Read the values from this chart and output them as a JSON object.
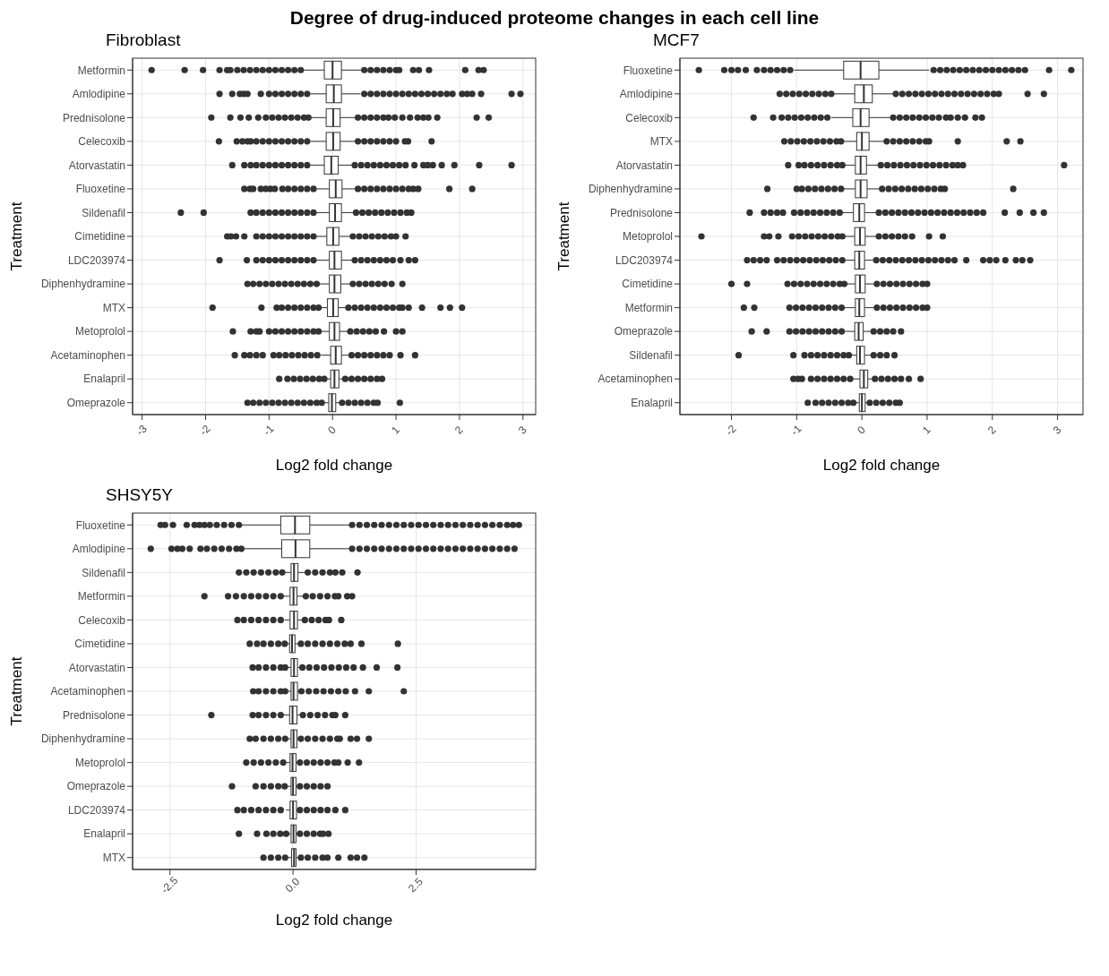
{
  "chart_data": [
    {
      "type": "box",
      "title": "Degree of drug-induced proteome changes in each cell line",
      "subtitle": "Fibroblast",
      "xlabel": "Log2 fold change",
      "ylabel": "Treatment",
      "orientation": "horizontal",
      "grid": true,
      "color": "#333333",
      "xlim": [
        -3.15,
        3.2
      ],
      "xticks": [
        -3,
        -2,
        -1,
        0,
        1,
        2,
        3
      ],
      "categories": [
        "Metformin",
        "Amlodipine",
        "Prednisolone",
        "Celecoxib",
        "Atorvastatin",
        "Fluoxetine",
        "Sildenafil",
        "Cimetidine",
        "LDC203974",
        "Diphenhydramine",
        "MTX",
        "Metoprolol",
        "Acetaminophen",
        "Enalapril",
        "Omeprazole"
      ],
      "boxes": [
        {
          "low": -0.45,
          "q1": -0.13,
          "median": 0.0,
          "q3": 0.14,
          "high": 0.47,
          "outliers": [
            -2.85,
            -2.33,
            -2.04,
            -1.78,
            -1.66,
            -1.61,
            -1.5,
            -1.4,
            -1.3,
            -1.2,
            -1.1,
            -1.0,
            -0.9,
            -0.8,
            -0.7,
            -0.6,
            -0.5,
            0.5,
            0.6,
            0.7,
            0.8,
            0.9,
            1.0,
            1.05,
            1.27,
            1.36,
            1.52,
            2.09,
            2.3,
            2.38
          ]
        },
        {
          "low": -0.35,
          "q1": -0.1,
          "median": 0.02,
          "q3": 0.14,
          "high": 0.44,
          "outliers": [
            -1.78,
            -1.58,
            -1.46,
            -1.4,
            -1.34,
            -1.13,
            -1.0,
            -0.9,
            -0.8,
            -0.7,
            -0.6,
            -0.5,
            -0.4,
            0.5,
            0.6,
            0.7,
            0.8,
            0.9,
            1.0,
            1.1,
            1.2,
            1.3,
            1.4,
            1.5,
            1.6,
            1.7,
            1.8,
            1.89,
            2.04,
            2.12,
            2.2,
            2.34,
            2.82,
            2.96
          ]
        },
        {
          "low": -0.35,
          "q1": -0.1,
          "median": 0.01,
          "q3": 0.12,
          "high": 0.37,
          "outliers": [
            -1.91,
            -1.61,
            -1.45,
            -1.32,
            -1.17,
            -1.05,
            -0.95,
            -0.85,
            -0.75,
            -0.65,
            -0.55,
            -0.45,
            -0.38,
            0.4,
            0.5,
            0.6,
            0.7,
            0.8,
            0.88,
            0.98,
            1.1,
            1.22,
            1.34,
            1.43,
            1.51,
            1.65,
            2.27,
            2.46
          ]
        },
        {
          "low": -0.35,
          "q1": -0.1,
          "median": 0.01,
          "q3": 0.12,
          "high": 0.37,
          "outliers": [
            -1.79,
            -1.51,
            -1.42,
            -1.34,
            -1.29,
            -1.2,
            -1.1,
            -1.0,
            -0.9,
            -0.8,
            -0.7,
            -0.6,
            -0.5,
            -0.4,
            0.4,
            0.5,
            0.6,
            0.7,
            0.8,
            0.9,
            1.0,
            1.14,
            1.19,
            1.56
          ]
        },
        {
          "low": -0.35,
          "q1": -0.13,
          "median": -0.02,
          "q3": 0.09,
          "high": 0.32,
          "outliers": [
            -1.58,
            -1.39,
            -1.29,
            -1.2,
            -1.1,
            -1.0,
            -0.9,
            -0.8,
            -0.7,
            -0.6,
            -0.5,
            -0.4,
            0.35,
            0.45,
            0.55,
            0.65,
            0.75,
            0.85,
            0.95,
            1.05,
            1.15,
            1.29,
            1.43,
            1.5,
            1.58,
            1.72,
            1.92,
            2.31,
            2.82
          ]
        },
        {
          "low": -0.28,
          "q1": -0.05,
          "median": 0.05,
          "q3": 0.15,
          "high": 0.37,
          "outliers": [
            -1.39,
            -1.3,
            -1.25,
            -1.13,
            -1.05,
            -0.98,
            -0.91,
            -0.79,
            -0.7,
            -0.6,
            -0.5,
            -0.4,
            -0.3,
            0.4,
            0.5,
            0.6,
            0.7,
            0.8,
            0.9,
            1.0,
            1.1,
            1.2,
            1.27,
            1.35,
            1.84,
            2.2
          ]
        },
        {
          "low": -0.28,
          "q1": -0.05,
          "median": 0.04,
          "q3": 0.14,
          "high": 0.35,
          "outliers": [
            -2.39,
            -2.03,
            -1.29,
            -1.2,
            -1.1,
            -1.0,
            -0.9,
            -0.8,
            -0.7,
            -0.6,
            -0.5,
            -0.4,
            -0.3,
            0.37,
            0.47,
            0.57,
            0.67,
            0.77,
            0.87,
            0.97,
            1.07,
            1.17,
            1.24
          ]
        },
        {
          "low": -0.28,
          "q1": -0.09,
          "median": 0.01,
          "q3": 0.1,
          "high": 0.3,
          "outliers": [
            -1.66,
            -1.6,
            -1.52,
            -1.39,
            -1.2,
            -1.1,
            -1.0,
            -0.9,
            -0.8,
            -0.7,
            -0.6,
            -0.5,
            -0.4,
            -0.3,
            0.32,
            0.42,
            0.52,
            0.62,
            0.72,
            0.82,
            0.92,
            1.0,
            1.15
          ]
        },
        {
          "low": -0.26,
          "q1": -0.05,
          "median": 0.03,
          "q3": 0.14,
          "high": 0.32,
          "outliers": [
            -1.78,
            -1.35,
            -1.2,
            -1.1,
            -1.0,
            -0.9,
            -0.8,
            -0.7,
            -0.6,
            -0.5,
            -0.4,
            -0.3,
            0.35,
            0.45,
            0.55,
            0.65,
            0.75,
            0.85,
            0.95,
            1.07,
            1.2,
            1.3
          ]
        },
        {
          "low": -0.21,
          "q1": -0.05,
          "median": 0.03,
          "q3": 0.13,
          "high": 0.3,
          "outliers": [
            -1.34,
            -1.25,
            -1.15,
            -1.05,
            -0.95,
            -0.85,
            -0.75,
            -0.65,
            -0.55,
            -0.45,
            -0.35,
            -0.25,
            0.32,
            0.42,
            0.52,
            0.62,
            0.72,
            0.82,
            0.93,
            1.1
          ]
        },
        {
          "low": -0.21,
          "q1": -0.08,
          "median": 0.01,
          "q3": 0.09,
          "high": 0.23,
          "outliers": [
            -1.89,
            -1.12,
            -0.88,
            -0.8,
            -0.7,
            -0.6,
            -0.5,
            -0.4,
            -0.3,
            -0.22,
            0.25,
            0.35,
            0.45,
            0.55,
            0.65,
            0.75,
            0.85,
            0.95,
            1.05,
            1.1,
            1.2,
            1.41,
            1.7,
            1.85,
            2.04
          ]
        },
        {
          "low": -0.21,
          "q1": -0.05,
          "median": 0.03,
          "q3": 0.11,
          "high": 0.25,
          "outliers": [
            -1.57,
            -1.29,
            -1.2,
            -1.15,
            -1.0,
            -0.9,
            -0.8,
            -0.7,
            -0.6,
            -0.5,
            -0.4,
            -0.3,
            -0.22,
            0.28,
            0.38,
            0.48,
            0.58,
            0.68,
            0.81,
            1.0,
            1.1
          ]
        },
        {
          "low": -0.18,
          "q1": -0.03,
          "median": 0.05,
          "q3": 0.14,
          "high": 0.28,
          "outliers": [
            -1.54,
            -1.39,
            -1.3,
            -1.2,
            -1.1,
            -0.93,
            -0.84,
            -0.74,
            -0.64,
            -0.54,
            -0.44,
            -0.34,
            -0.24,
            0.3,
            0.4,
            0.5,
            0.6,
            0.7,
            0.8,
            0.9,
            1.07,
            1.3
          ]
        },
        {
          "low": -0.11,
          "q1": -0.03,
          "median": 0.03,
          "q3": 0.1,
          "high": 0.18,
          "outliers": [
            -0.84,
            -0.71,
            -0.61,
            -0.51,
            -0.41,
            -0.31,
            -0.21,
            -0.13,
            0.2,
            0.3,
            0.4,
            0.5,
            0.6,
            0.7,
            0.78
          ]
        },
        {
          "low": -0.16,
          "q1": -0.06,
          "median": -0.01,
          "q3": 0.05,
          "high": 0.13,
          "outliers": [
            -1.34,
            -1.25,
            -1.15,
            -1.05,
            -0.95,
            -0.85,
            -0.75,
            -0.65,
            -0.55,
            -0.45,
            -0.35,
            -0.25,
            -0.17,
            0.15,
            0.25,
            0.35,
            0.45,
            0.55,
            0.65,
            0.71,
            1.06
          ]
        }
      ]
    },
    {
      "type": "box",
      "subtitle": "MCF7",
      "xlabel": "Log2 fold change",
      "ylabel": "Treatment",
      "orientation": "horizontal",
      "grid": true,
      "color": "#333333",
      "xlim": [
        -2.79,
        3.39
      ],
      "xticks": [
        -2,
        -1,
        0,
        1,
        2,
        3
      ],
      "categories": [
        "Fluoxetine",
        "Amlodipine",
        "Celecoxib",
        "MTX",
        "Atorvastatin",
        "Diphenhydramine",
        "Prednisolone",
        "Metoprolol",
        "LDC203974",
        "Cimetidine",
        "Metformin",
        "Omeprazole",
        "Sildenafil",
        "Acetaminophen",
        "Enalapril"
      ],
      "boxes": [
        {
          "low": -1.04,
          "q1": -0.28,
          "median": -0.02,
          "q3": 0.26,
          "high": 1.03,
          "outliers": [
            -2.5,
            -2.11,
            -2.0,
            -1.9,
            -1.78,
            -1.61,
            -1.5,
            -1.4,
            -1.3,
            -1.2,
            -1.1,
            1.1,
            1.2,
            1.3,
            1.4,
            1.5,
            1.6,
            1.7,
            1.8,
            1.9,
            2.0,
            2.1,
            2.2,
            2.3,
            2.4,
            2.5,
            2.87,
            3.21
          ]
        },
        {
          "low": -0.45,
          "q1": -0.11,
          "median": 0.03,
          "q3": 0.16,
          "high": 0.5,
          "outliers": [
            -1.26,
            -1.16,
            -1.06,
            -0.96,
            -0.86,
            -0.76,
            -0.66,
            -0.56,
            -0.47,
            0.52,
            0.62,
            0.72,
            0.82,
            0.92,
            1.02,
            1.12,
            1.22,
            1.32,
            1.42,
            1.52,
            1.62,
            1.72,
            1.82,
            1.92,
            2.02,
            2.1,
            2.54,
            2.79
          ]
        },
        {
          "low": -0.47,
          "q1": -0.14,
          "median": -0.02,
          "q3": 0.11,
          "high": 0.46,
          "outliers": [
            -1.66,
            -1.36,
            -1.23,
            -1.13,
            -1.03,
            -0.93,
            -0.83,
            -0.73,
            -0.63,
            -0.53,
            0.48,
            0.58,
            0.68,
            0.78,
            0.88,
            0.98,
            1.08,
            1.18,
            1.29,
            1.36,
            1.47,
            1.58,
            1.74,
            1.84
          ]
        },
        {
          "low": -0.3,
          "q1": -0.08,
          "median": 0.0,
          "q3": 0.11,
          "high": 0.36,
          "outliers": [
            -1.19,
            -1.09,
            -0.99,
            -0.89,
            -0.79,
            -0.69,
            -0.59,
            -0.49,
            -0.39,
            -0.32,
            0.38,
            0.48,
            0.58,
            0.68,
            0.78,
            0.88,
            0.98,
            1.03,
            1.47,
            2.22,
            2.43
          ]
        },
        {
          "low": -0.29,
          "q1": -0.1,
          "median": -0.02,
          "q3": 0.07,
          "high": 0.27,
          "outliers": [
            -1.13,
            -0.97,
            -0.88,
            -0.78,
            -0.68,
            -0.58,
            -0.48,
            -0.38,
            -0.3,
            0.29,
            0.39,
            0.49,
            0.59,
            0.69,
            0.79,
            0.89,
            0.99,
            1.09,
            1.19,
            1.29,
            1.39,
            1.47,
            1.55,
            3.1
          ]
        },
        {
          "low": -0.29,
          "q1": -0.1,
          "median": -0.02,
          "q3": 0.08,
          "high": 0.29,
          "outliers": [
            -1.45,
            -1.0,
            -0.92,
            -0.82,
            -0.72,
            -0.62,
            -0.52,
            -0.42,
            -0.32,
            0.31,
            0.41,
            0.51,
            0.61,
            0.71,
            0.81,
            0.91,
            1.01,
            1.11,
            1.21,
            1.27,
            2.32
          ]
        },
        {
          "low": -0.3,
          "q1": -0.13,
          "median": -0.04,
          "q3": 0.04,
          "high": 0.22,
          "outliers": [
            -1.72,
            -1.5,
            -1.4,
            -1.3,
            -1.21,
            -1.04,
            -0.94,
            -0.84,
            -0.74,
            -0.64,
            -0.54,
            -0.44,
            -0.34,
            0.26,
            0.36,
            0.46,
            0.56,
            0.66,
            0.76,
            0.86,
            0.96,
            1.06,
            1.16,
            1.26,
            1.36,
            1.46,
            1.56,
            1.66,
            1.76,
            1.86,
            2.19,
            2.42,
            2.63,
            2.79
          ]
        },
        {
          "low": -0.29,
          "q1": -0.11,
          "median": -0.03,
          "q3": 0.05,
          "high": 0.23,
          "outliers": [
            -2.46,
            -1.5,
            -1.42,
            -1.28,
            -1.07,
            -0.97,
            -0.87,
            -0.77,
            -0.67,
            -0.57,
            -0.47,
            -0.37,
            -0.3,
            0.26,
            0.36,
            0.46,
            0.56,
            0.66,
            0.77,
            1.03,
            1.24
          ]
        },
        {
          "low": -0.28,
          "q1": -0.11,
          "median": -0.04,
          "q3": 0.04,
          "high": 0.2,
          "outliers": [
            -1.76,
            -1.66,
            -1.56,
            -1.46,
            -1.3,
            -1.2,
            -1.1,
            -1.0,
            -0.9,
            -0.8,
            -0.7,
            -0.6,
            -0.5,
            -0.4,
            -0.3,
            0.22,
            0.32,
            0.42,
            0.52,
            0.62,
            0.72,
            0.82,
            0.92,
            1.02,
            1.12,
            1.22,
            1.32,
            1.42,
            1.6,
            1.86,
            1.96,
            2.06,
            2.2,
            2.36,
            2.46,
            2.58
          ]
        },
        {
          "low": -0.26,
          "q1": -0.1,
          "median": -0.03,
          "q3": 0.05,
          "high": 0.2,
          "outliers": [
            -2.0,
            -1.76,
            -1.14,
            -1.04,
            -0.94,
            -0.84,
            -0.74,
            -0.64,
            -0.54,
            -0.44,
            -0.34,
            -0.27,
            0.23,
            0.33,
            0.43,
            0.53,
            0.63,
            0.73,
            0.83,
            0.93,
            1.0
          ]
        },
        {
          "low": -0.26,
          "q1": -0.1,
          "median": -0.04,
          "q3": 0.04,
          "high": 0.2,
          "outliers": [
            -1.81,
            -1.65,
            -1.11,
            -1.01,
            -0.91,
            -0.81,
            -0.71,
            -0.61,
            -0.51,
            -0.41,
            -0.31,
            0.23,
            0.33,
            0.43,
            0.53,
            0.63,
            0.73,
            0.83,
            0.93,
            1.0
          ]
        },
        {
          "low": -0.26,
          "q1": -0.11,
          "median": -0.05,
          "q3": 0.02,
          "high": 0.15,
          "outliers": [
            -1.69,
            -1.46,
            -1.11,
            -1.01,
            -0.91,
            -0.81,
            -0.71,
            -0.61,
            -0.51,
            -0.41,
            -0.31,
            0.18,
            0.28,
            0.38,
            0.48,
            0.6
          ]
        },
        {
          "low": -0.19,
          "q1": -0.08,
          "median": -0.03,
          "q3": 0.04,
          "high": 0.15,
          "outliers": [
            -1.89,
            -1.05,
            -0.88,
            -0.78,
            -0.68,
            -0.58,
            -0.48,
            -0.38,
            -0.28,
            -0.2,
            0.18,
            0.28,
            0.38,
            0.5
          ]
        },
        {
          "low": -0.14,
          "q1": -0.03,
          "median": 0.03,
          "q3": 0.09,
          "high": 0.17,
          "outliers": [
            -1.05,
            -0.98,
            -0.92,
            -0.78,
            -0.68,
            -0.58,
            -0.48,
            -0.38,
            -0.28,
            -0.18,
            0.2,
            0.3,
            0.4,
            0.5,
            0.6,
            0.72,
            0.9
          ]
        },
        {
          "low": -0.11,
          "q1": -0.04,
          "median": 0.0,
          "q3": 0.05,
          "high": 0.1,
          "outliers": [
            -0.83,
            -0.71,
            -0.61,
            -0.51,
            -0.41,
            -0.31,
            -0.21,
            -0.13,
            0.12,
            0.22,
            0.32,
            0.42,
            0.52,
            0.58
          ]
        }
      ]
    },
    {
      "type": "box",
      "subtitle": "SHSY5Y",
      "xlabel": "Log2 fold change",
      "ylabel": "Treatment",
      "orientation": "horizontal",
      "grid": true,
      "color": "#333333",
      "xlim": [
        -3.26,
        4.93
      ],
      "xticks": [
        {
          "value": -2.5,
          "label": "-2.5"
        },
        {
          "value": 0,
          "label": "0.0"
        },
        {
          "value": 2.5,
          "label": "2.5"
        }
      ],
      "categories": [
        "Fluoxetine",
        "Amlodipine",
        "Sildenafil",
        "Metformin",
        "Celecoxib",
        "Cimetidine",
        "Atorvastatin",
        "Acetaminophen",
        "Prednisolone",
        "Diphenhydramine",
        "Metoprolol",
        "Omeprazole",
        "LDC203974",
        "Enalapril",
        "MTX"
      ],
      "boxes": [
        {
          "low": -1.04,
          "q1": -0.25,
          "median": 0.04,
          "q3": 0.34,
          "high": 1.17,
          "outliers": [
            -2.69,
            -2.6,
            -2.44,
            -2.16,
            -2.0,
            -1.9,
            -1.8,
            -1.69,
            -1.55,
            -1.4,
            -1.25,
            -1.1,
            1.2,
            1.35,
            1.5,
            1.65,
            1.8,
            1.95,
            2.1,
            2.25,
            2.4,
            2.55,
            2.7,
            2.85,
            3.0,
            3.15,
            3.3,
            3.45,
            3.6,
            3.75,
            3.9,
            4.05,
            4.2,
            4.35,
            4.47,
            4.59
          ]
        },
        {
          "low": -1.01,
          "q1": -0.23,
          "median": 0.05,
          "q3": 0.34,
          "high": 1.14,
          "outliers": [
            -2.89,
            -2.47,
            -2.35,
            -2.25,
            -2.1,
            -1.88,
            -1.75,
            -1.6,
            -1.45,
            -1.3,
            -1.15,
            -1.05,
            1.2,
            1.35,
            1.5,
            1.65,
            1.8,
            1.95,
            2.1,
            2.25,
            2.4,
            2.55,
            2.7,
            2.85,
            3.0,
            3.15,
            3.3,
            3.45,
            3.6,
            3.75,
            3.9,
            4.05,
            4.2,
            4.35,
            4.5
          ]
        },
        {
          "low": -0.2,
          "q1": -0.04,
          "median": 0.02,
          "q3": 0.1,
          "high": 0.27,
          "outliers": [
            -1.1,
            -0.95,
            -0.8,
            -0.65,
            -0.5,
            -0.35,
            -0.22,
            0.3,
            0.45,
            0.6,
            0.75,
            0.86,
            1.0,
            1.31
          ]
        },
        {
          "low": -0.2,
          "q1": -0.06,
          "median": 0.01,
          "q3": 0.08,
          "high": 0.24,
          "outliers": [
            -1.8,
            -1.32,
            -1.16,
            -1.0,
            -0.85,
            -0.7,
            -0.55,
            -0.4,
            -0.25,
            0.26,
            0.4,
            0.55,
            0.7,
            0.85,
            0.92,
            1.1,
            1.2
          ]
        },
        {
          "low": -0.17,
          "q1": -0.06,
          "median": 0.02,
          "q3": 0.09,
          "high": 0.22,
          "outliers": [
            -1.13,
            -1.0,
            -0.85,
            -0.7,
            -0.55,
            -0.4,
            -0.25,
            0.24,
            0.38,
            0.52,
            0.66,
            0.73,
            0.98
          ]
        },
        {
          "low": -0.14,
          "q1": -0.07,
          "median": -0.02,
          "q3": 0.04,
          "high": 0.14,
          "outliers": [
            -0.88,
            -0.73,
            -0.6,
            -0.45,
            -0.3,
            -0.17,
            0.16,
            0.3,
            0.45,
            0.6,
            0.75,
            0.9,
            1.05,
            1.17,
            1.39,
            2.13
          ]
        },
        {
          "low": -0.14,
          "q1": -0.04,
          "median": 0.02,
          "q3": 0.09,
          "high": 0.17,
          "outliers": [
            -0.82,
            -0.7,
            -0.55,
            -0.4,
            -0.25,
            -0.16,
            0.19,
            0.33,
            0.48,
            0.63,
            0.78,
            0.93,
            1.08,
            1.23,
            1.42,
            1.7,
            2.12
          ]
        },
        {
          "low": -0.14,
          "q1": -0.04,
          "median": 0.01,
          "q3": 0.09,
          "high": 0.16,
          "outliers": [
            -0.81,
            -0.7,
            -0.55,
            -0.4,
            -0.25,
            -0.16,
            0.17,
            0.32,
            0.47,
            0.62,
            0.77,
            0.92,
            1.07,
            1.26,
            1.54,
            2.25
          ]
        },
        {
          "low": -0.19,
          "q1": -0.07,
          "median": -0.01,
          "q3": 0.08,
          "high": 0.17,
          "outliers": [
            -1.66,
            -0.82,
            -0.7,
            -0.55,
            -0.4,
            -0.25,
            0.2,
            0.35,
            0.5,
            0.65,
            0.8,
            0.86,
            1.06
          ]
        },
        {
          "low": -0.14,
          "q1": -0.04,
          "median": 0.01,
          "q3": 0.08,
          "high": 0.14,
          "outliers": [
            -0.88,
            -0.76,
            -0.6,
            -0.45,
            -0.3,
            -0.16,
            0.16,
            0.3,
            0.45,
            0.6,
            0.75,
            0.9,
            0.95,
            1.17,
            1.3,
            1.54
          ]
        },
        {
          "low": -0.14,
          "q1": -0.06,
          "median": -0.01,
          "q3": 0.06,
          "high": 0.11,
          "outliers": [
            -0.95,
            -0.8,
            -0.65,
            -0.5,
            -0.35,
            -0.2,
            0.14,
            0.28,
            0.42,
            0.56,
            0.7,
            0.84,
            0.92,
            1.11,
            1.34
          ]
        },
        {
          "low": -0.14,
          "q1": -0.04,
          "median": 0.0,
          "q3": 0.06,
          "high": 0.12,
          "outliers": [
            -1.24,
            -0.76,
            -0.6,
            -0.45,
            -0.3,
            -0.17,
            0.14,
            0.28,
            0.42,
            0.56,
            0.7
          ]
        },
        {
          "low": -0.14,
          "q1": -0.06,
          "median": 0.0,
          "q3": 0.07,
          "high": 0.12,
          "outliers": [
            -1.13,
            -1.0,
            -0.85,
            -0.7,
            -0.55,
            -0.4,
            -0.25,
            0.14,
            0.28,
            0.42,
            0.56,
            0.7,
            0.86,
            1.06
          ]
        },
        {
          "low": -0.11,
          "q1": -0.04,
          "median": 0.01,
          "q3": 0.06,
          "high": 0.12,
          "outliers": [
            -1.1,
            -0.73,
            -0.54,
            -0.4,
            -0.26,
            -0.14,
            0.14,
            0.28,
            0.42,
            0.55,
            0.61,
            0.72
          ]
        },
        {
          "low": -0.1,
          "q1": -0.03,
          "median": 0.02,
          "q3": 0.06,
          "high": 0.14,
          "outliers": [
            -0.6,
            -0.45,
            -0.3,
            -0.16,
            0.16,
            0.3,
            0.45,
            0.6,
            0.7,
            0.92,
            1.17,
            1.3,
            1.45
          ]
        }
      ]
    }
  ]
}
